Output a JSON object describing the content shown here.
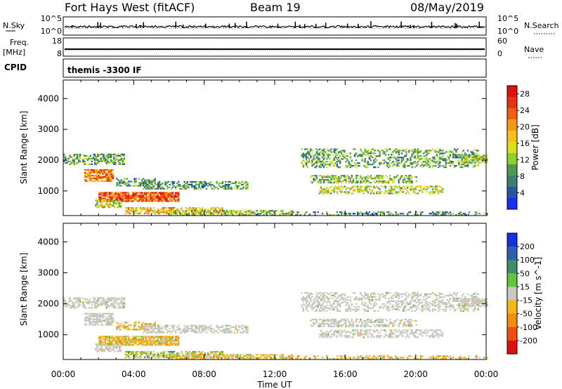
{
  "header": {
    "radar": "Fort Hays West (fitACF)",
    "beam": "Beam 19",
    "date": "08/May/2019"
  },
  "top_panels": {
    "nsky": {
      "label": "N.Sky",
      "ticks": [
        "10^5",
        "10^0"
      ]
    },
    "nsearch": {
      "label": "N.Search",
      "ticks": [
        "10^5",
        "10^0"
      ]
    },
    "freq": {
      "label_line1": "Freq.",
      "label_line2": "[MHz]",
      "ticks": [
        "18",
        "8"
      ]
    },
    "nave": {
      "label": "Nave",
      "ticks": [
        "60",
        "0"
      ]
    },
    "cpid": {
      "label": "CPID",
      "value": "themis -3300 IF"
    }
  },
  "chart_data": [
    {
      "type": "heatmap",
      "title": "",
      "xlabel": "Time UT",
      "ylabel": "Slant Range [km]",
      "x_ticks": [
        "00:00",
        "04:00",
        "08:00",
        "12:00",
        "16:00",
        "20:00",
        "00:00"
      ],
      "x_range_hours": [
        0,
        24
      ],
      "y_ticks": [
        1000,
        2000,
        3000,
        4000
      ],
      "ylim": [
        200,
        4600
      ],
      "colorbar": {
        "label": "Power [dB]",
        "ticks": [
          "4",
          "8",
          "12",
          "16",
          "20",
          "24",
          "28"
        ],
        "range": [
          0,
          30
        ],
        "colors": [
          "#1530f0",
          "#2d52a8",
          "#3a7f74",
          "#4e9a50",
          "#8ed028",
          "#d8e020",
          "#f8c018",
          "#f39a12",
          "#ee6010",
          "#e83012",
          "#e01010"
        ]
      },
      "regions": [
        {
          "t": [
            0.0,
            3.5
          ],
          "r": [
            1850,
            2200
          ],
          "level": 10,
          "density": 0.55
        },
        {
          "t": [
            1.2,
            2.8
          ],
          "r": [
            1300,
            1700
          ],
          "level": 22,
          "density": 0.75
        },
        {
          "t": [
            3.0,
            5.2
          ],
          "r": [
            1150,
            1400
          ],
          "level": 8,
          "density": 0.5
        },
        {
          "t": [
            4.5,
            10.5
          ],
          "r": [
            1050,
            1300
          ],
          "level": 9,
          "density": 0.55
        },
        {
          "t": [
            2.0,
            6.5
          ],
          "r": [
            650,
            950
          ],
          "level": 24,
          "density": 0.85
        },
        {
          "t": [
            1.8,
            3.3
          ],
          "r": [
            450,
            700
          ],
          "level": 14,
          "density": 0.5
        },
        {
          "t": [
            3.5,
            9.0
          ],
          "r": [
            250,
            450
          ],
          "level": 18,
          "density": 0.6
        },
        {
          "t": [
            6.0,
            13.0
          ],
          "r": [
            200,
            350
          ],
          "level": 12,
          "density": 0.55
        },
        {
          "t": [
            13.0,
            24.0
          ],
          "r": [
            200,
            300
          ],
          "level": 8,
          "density": 0.35
        },
        {
          "t": [
            13.5,
            23.5
          ],
          "r": [
            1750,
            2350
          ],
          "level": 10,
          "density": 0.4
        },
        {
          "t": [
            14.0,
            20.0
          ],
          "r": [
            1250,
            1500
          ],
          "level": 12,
          "density": 0.5
        },
        {
          "t": [
            14.5,
            21.5
          ],
          "r": [
            900,
            1150
          ],
          "level": 14,
          "density": 0.45
        },
        {
          "t": [
            22.5,
            24.0
          ],
          "r": [
            1900,
            2150
          ],
          "level": 12,
          "density": 0.7
        }
      ]
    },
    {
      "type": "heatmap",
      "title": "",
      "xlabel": "Time UT",
      "ylabel": "Slant Range [km]",
      "x_ticks": [
        "00:00",
        "04:00",
        "08:00",
        "12:00",
        "16:00",
        "20:00",
        "00:00"
      ],
      "x_range_hours": [
        0,
        24
      ],
      "y_ticks": [
        1000,
        2000,
        3000,
        4000
      ],
      "ylim": [
        200,
        4600
      ],
      "colorbar": {
        "label": "Velocity [m s^-1]",
        "ticks": [
          "200",
          "100",
          "50",
          "15",
          "-15",
          "-50",
          "-100",
          "-200"
        ],
        "colors": [
          "#1530e0",
          "#2d5fb0",
          "#3f8e6a",
          "#60c43c",
          "#c8c8c0",
          "#f3b818",
          "#f38d10",
          "#ee5010",
          "#e01010"
        ]
      },
      "regions": [
        {
          "t": [
            0.0,
            3.5
          ],
          "r": [
            1850,
            2200
          ],
          "class": "ground",
          "density": 0.55
        },
        {
          "t": [
            1.2,
            2.8
          ],
          "r": [
            1300,
            1700
          ],
          "class": "ground",
          "density": 0.7
        },
        {
          "t": [
            3.0,
            5.2
          ],
          "r": [
            1150,
            1400
          ],
          "class": "neg-weak",
          "density": 0.5
        },
        {
          "t": [
            4.5,
            10.5
          ],
          "r": [
            1050,
            1300
          ],
          "class": "ground",
          "density": 0.55
        },
        {
          "t": [
            2.0,
            6.5
          ],
          "r": [
            650,
            950
          ],
          "class": "neg-weak",
          "density": 0.85
        },
        {
          "t": [
            1.8,
            3.3
          ],
          "r": [
            450,
            700
          ],
          "class": "ground",
          "density": 0.5
        },
        {
          "t": [
            3.5,
            9.0
          ],
          "r": [
            250,
            450
          ],
          "class": "mixed-pos",
          "density": 0.6
        },
        {
          "t": [
            6.0,
            13.0
          ],
          "r": [
            200,
            350
          ],
          "class": "neg-weak",
          "density": 0.55
        },
        {
          "t": [
            13.0,
            24.0
          ],
          "r": [
            200,
            300
          ],
          "class": "neg-weak",
          "density": 0.35
        },
        {
          "t": [
            13.5,
            23.5
          ],
          "r": [
            1750,
            2350
          ],
          "class": "ground",
          "density": 0.4
        },
        {
          "t": [
            14.0,
            20.0
          ],
          "r": [
            1250,
            1500
          ],
          "class": "ground",
          "density": 0.5
        },
        {
          "t": [
            14.5,
            21.5
          ],
          "r": [
            900,
            1150
          ],
          "class": "ground",
          "density": 0.45
        },
        {
          "t": [
            22.5,
            24.0
          ],
          "r": [
            1900,
            2150
          ],
          "class": "ground",
          "density": 0.7
        }
      ]
    }
  ]
}
